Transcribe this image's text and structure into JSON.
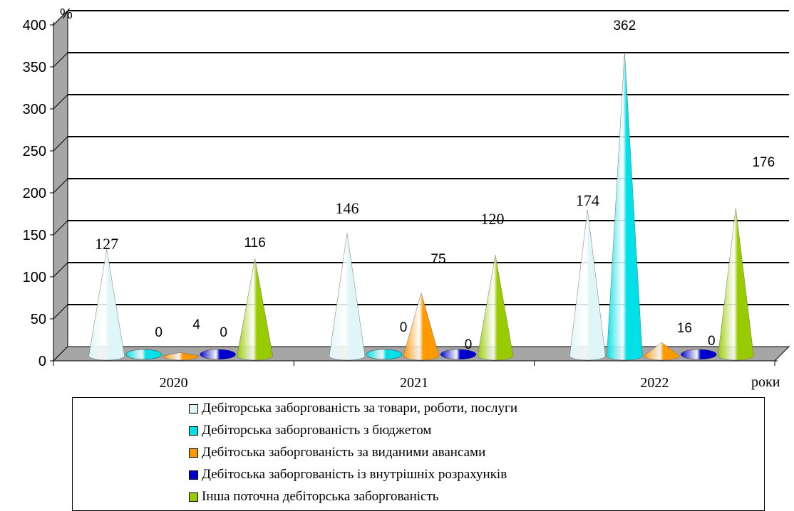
{
  "chart_data": {
    "type": "bar",
    "style": "3d-cone",
    "categories": [
      "2020",
      "2021",
      "2022"
    ],
    "series": [
      {
        "name": "Дебіторська заборгованість за товари, роботи, послуги",
        "values": [
          127,
          146,
          174
        ],
        "color": "#dff6f8"
      },
      {
        "name": "Дебіторська заборгованість з бюджетом",
        "values": [
          0,
          0,
          362
        ],
        "color": "#00e0e6"
      },
      {
        "name": "Дебітоська заборгованість за виданими авансами",
        "values": [
          4,
          75,
          16
        ],
        "color": "#ff9900"
      },
      {
        "name": "Дебітоська заборгованість із внутрішніх розрахунків",
        "values": [
          0,
          0,
          0
        ],
        "color": "#0000cc"
      },
      {
        "name": "Інша поточна дебіторська заборгованість",
        "values": [
          116,
          120,
          176
        ],
        "color": "#99cc00"
      }
    ],
    "data_labels": [
      [
        "127",
        "0",
        "4",
        "0",
        "116"
      ],
      [
        "146",
        "0",
        "75",
        "0",
        "120"
      ],
      [
        "174",
        "362",
        "16",
        "0",
        "176"
      ]
    ],
    "y_unit_label": "%",
    "x_unit_label": "роки",
    "ylim": [
      0,
      400
    ],
    "yticks": [
      "0",
      "50",
      "100",
      "150",
      "200",
      "250",
      "300",
      "350",
      "400"
    ],
    "grid": true,
    "legend_position": "bottom"
  }
}
